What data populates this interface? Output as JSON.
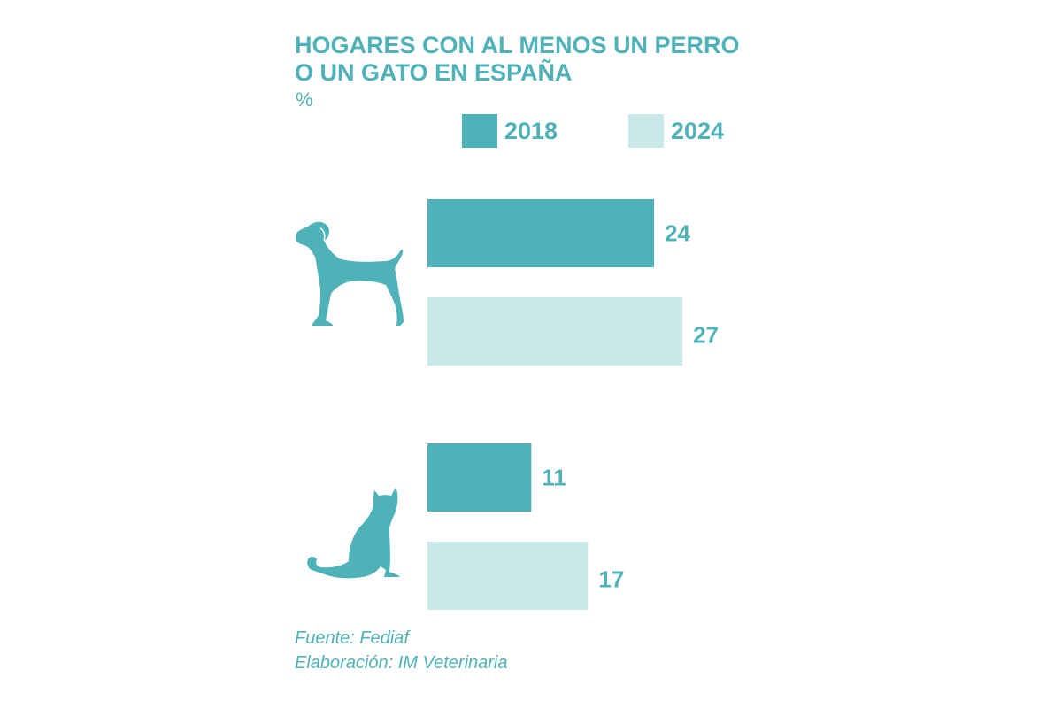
{
  "title_lines": [
    "HOGARES CON AL MENOS UN PERRO",
    "O UN GATO EN ESPAÑA"
  ],
  "unit": "%",
  "colors": {
    "series_2018": "#4fb2b8",
    "series_2024": "#c9e8ea",
    "text": "#4fb2b8"
  },
  "chart_data": {
    "type": "bar",
    "orientation": "horizontal",
    "title": "HOGARES CON AL MENOS UN PERRO O UN GATO EN ESPAÑA",
    "ylabel": "%",
    "categories": [
      "Perro",
      "Gato"
    ],
    "category_icons": [
      "dog-icon",
      "cat-icon"
    ],
    "series": [
      {
        "name": "2018",
        "values": [
          24,
          11
        ]
      },
      {
        "name": "2024",
        "values": [
          27,
          17
        ]
      }
    ],
    "xlim": [
      0,
      30
    ],
    "grid": false,
    "legend": "top"
  },
  "legend": [
    {
      "label": "2018"
    },
    {
      "label": "2024"
    }
  ],
  "source": {
    "fuente": "Fuente: Fediaf",
    "elaboracion": "Elaboración: IM Veterinaria"
  }
}
